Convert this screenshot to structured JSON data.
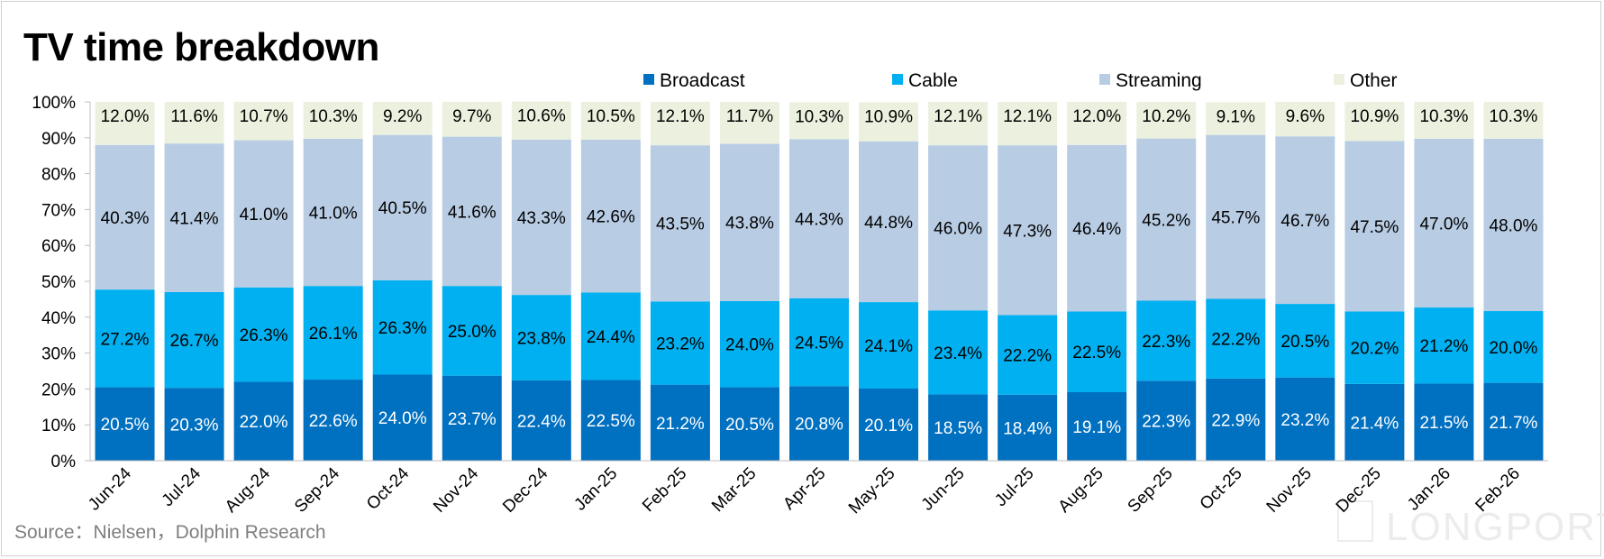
{
  "title": "TV time breakdown",
  "source": "Source：Nielsen，Dolphin Research",
  "watermark": "LONGPORT",
  "chart_data": {
    "type": "bar",
    "stacked": true,
    "title": "TV time breakdown",
    "xlabel": "",
    "ylabel": "",
    "ylim": [
      0,
      100
    ],
    "y_ticks": [
      "0%",
      "10%",
      "20%",
      "30%",
      "40%",
      "50%",
      "60%",
      "70%",
      "80%",
      "90%",
      "100%"
    ],
    "legend_position": "top",
    "categories": [
      "Jun-24",
      "Jul-24",
      "Aug-24",
      "Sep-24",
      "Oct-24",
      "Nov-24",
      "Dec-24",
      "Jan-25",
      "Feb-25",
      "Mar-25",
      "Apr-25",
      "May-25",
      "Jun-25",
      "Jul-25",
      "Aug-25",
      "Sep-25",
      "Oct-25",
      "Nov-25",
      "Dec-25",
      "Jan-26",
      "Feb-26"
    ],
    "series": [
      {
        "name": "Broadcast",
        "color": "#0070c0",
        "label_color": "#ffffff",
        "values": [
          20.5,
          20.3,
          22.0,
          22.6,
          24.0,
          23.7,
          22.4,
          22.5,
          21.2,
          20.5,
          20.8,
          20.1,
          18.5,
          18.4,
          19.1,
          22.3,
          22.9,
          23.2,
          21.4,
          21.5,
          21.7
        ]
      },
      {
        "name": "Cable",
        "color": "#00b0f0",
        "label_color": "#000000",
        "values": [
          27.2,
          26.7,
          26.3,
          26.1,
          26.3,
          25.0,
          23.8,
          24.4,
          23.2,
          24.0,
          24.5,
          24.1,
          23.4,
          22.2,
          22.5,
          22.3,
          22.2,
          20.5,
          20.2,
          21.2,
          20.0
        ]
      },
      {
        "name": "Streaming",
        "color": "#b8cce4",
        "label_color": "#000000",
        "values": [
          40.3,
          41.4,
          41.0,
          41.0,
          40.5,
          41.6,
          43.3,
          42.6,
          43.5,
          43.8,
          44.3,
          44.8,
          46.0,
          47.3,
          46.4,
          45.2,
          45.7,
          46.7,
          47.5,
          47.0,
          48.0
        ]
      },
      {
        "name": "Other",
        "color": "#ebf1de",
        "label_color": "#000000",
        "values": [
          12.0,
          11.6,
          10.7,
          10.3,
          9.2,
          9.7,
          10.6,
          10.5,
          12.1,
          11.7,
          10.3,
          10.9,
          12.1,
          12.1,
          12.0,
          10.2,
          9.1,
          9.6,
          10.9,
          10.3,
          10.3
        ]
      }
    ]
  }
}
